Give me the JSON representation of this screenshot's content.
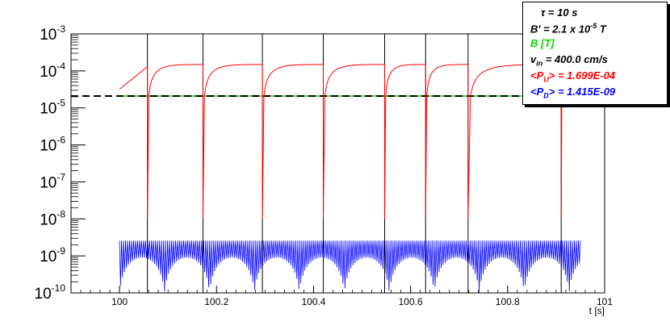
{
  "chart_data": {
    "type": "line",
    "title": "",
    "xlabel": "t [s]",
    "ylabel": "",
    "xlim": [
      99.9,
      101
    ],
    "ylim_log10": [
      -10,
      -3
    ],
    "log_y": true,
    "x_ticks": [
      "100",
      "100.2",
      "100.4",
      "100.6",
      "100.8",
      "101"
    ],
    "y_ticks": [
      {
        "base": "10",
        "exp": "-10"
      },
      {
        "base": "10",
        "exp": "-9"
      },
      {
        "base": "10",
        "exp": "-8"
      },
      {
        "base": "10",
        "exp": "-7"
      },
      {
        "base": "10",
        "exp": "-6"
      },
      {
        "base": "10",
        "exp": "-5"
      },
      {
        "base": "10",
        "exp": "-4"
      },
      {
        "base": "10",
        "exp": "-3"
      }
    ],
    "flip_times": [
      100.0575,
      100.172,
      100.2945,
      100.42,
      100.5465,
      100.631,
      100.7185,
      100.9105
    ],
    "series": [
      {
        "name": "<P_U>",
        "color": "#ff0000",
        "shape": "rising recovery between flips, peak ~1.4E-04",
        "x": [
          100.0,
          100.0575,
          100.06,
          100.08,
          100.11,
          100.172,
          100.175,
          100.2,
          100.24,
          100.2945,
          100.297,
          100.32,
          100.36,
          100.42,
          100.422,
          100.45,
          100.49,
          100.5465,
          100.549,
          100.57,
          100.6,
          100.631,
          100.633,
          100.65,
          100.68,
          100.7185,
          100.72,
          100.75,
          100.8,
          100.86,
          100.9105,
          100.913,
          100.94,
          100.96
        ],
        "y": [
          3.2e-05,
          0.00013,
          1e-08,
          1.2e-05,
          5e-05,
          0.000135,
          1e-08,
          1.5e-05,
          6e-05,
          0.000145,
          1e-08,
          1.5e-05,
          6e-05,
          0.00015,
          1e-08,
          1.7e-05,
          6.5e-05,
          0.00015,
          1e-08,
          1.2e-05,
          5e-05,
          0.00011,
          1e-08,
          1e-05,
          4.5e-05,
          0.00011,
          1e-08,
          1.4e-05,
          6e-05,
          0.00013,
          0.00014,
          1e-08,
          1.6e-05,
          6e-05
        ]
      },
      {
        "name": "B [T]",
        "color": "#00dd00",
        "value": 2.1e-05
      },
      {
        "name": "B' (reference)",
        "color": "#000000",
        "value": 2.1e-05,
        "style": "dashed"
      },
      {
        "name": "<P_D>",
        "color": "#0000ff",
        "shape": "rapid oscillation",
        "y_max": 2.6e-09,
        "y_min": 1e-10,
        "x_range": [
          100.0,
          100.95
        ]
      }
    ]
  },
  "legend": {
    "tau": "τ = 10 s",
    "bprime_prefix": "B' =  2.1 x 10",
    "bprime_exp": "-5",
    "bprime_unit": " T",
    "b_label": "B [T]",
    "vin_v": "v",
    "vin_sub": "in",
    "vin_rest": " =  400.0 cm/s",
    "pu_open": "<P",
    "pu_sub": "U",
    "pu_rest": "> = 1.699E-04",
    "pd_open": "<P",
    "pd_sub": "D",
    "pd_rest": "> = 1.415E-09",
    "colors": {
      "tau": "#000000",
      "b": "#00dd00",
      "pu": "#ff0000",
      "pd": "#0000ff"
    }
  }
}
